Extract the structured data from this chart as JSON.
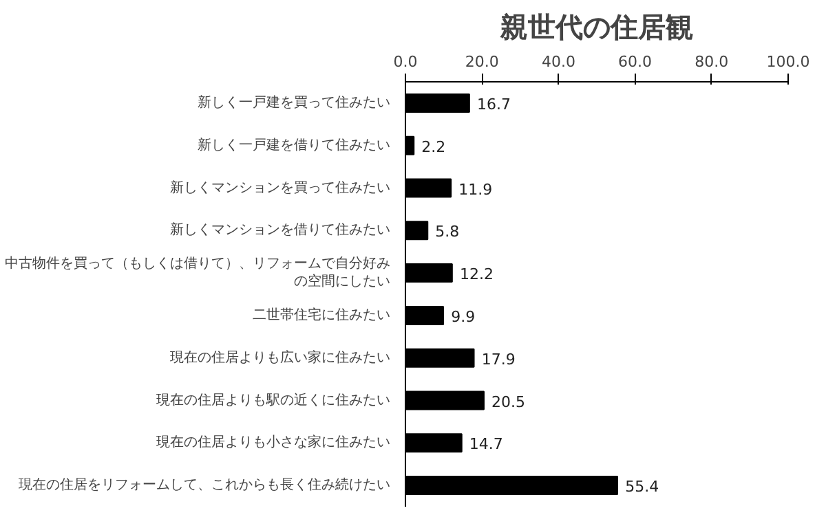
{
  "chart_data": {
    "type": "bar",
    "orientation": "horizontal",
    "title": "親世代の住居観",
    "categories": [
      "新しく一戸建を買って住みたい",
      "新しく一戸建を借りて住みたい",
      "新しくマンションを買って住みたい",
      "新しくマンションを借りて住みたい",
      "中古物件を買って（もしくは借りて）、リフォームで自分好みの空間にしたい",
      "二世帯住宅に住みたい",
      "現在の住居よりも広い家に住みたい",
      "現在の住居よりも駅の近くに住みたい",
      "現在の住居よりも小さな家に住みたい",
      "現在の住居をリフォームして、これからも長く住み続けたい"
    ],
    "values": [
      16.7,
      2.2,
      11.9,
      5.8,
      12.2,
      9.9,
      17.9,
      20.5,
      14.7,
      55.4
    ],
    "color": "#000000",
    "xlim": [
      0,
      100
    ],
    "xticks": [
      {
        "value": 0,
        "label": "0.0"
      },
      {
        "value": 20,
        "label": "20.0"
      },
      {
        "value": 40,
        "label": "40.0"
      },
      {
        "value": 60,
        "label": "60.0"
      },
      {
        "value": 80,
        "label": "80.0"
      },
      {
        "value": 100,
        "label": "100.0"
      }
    ],
    "data_labels": true
  }
}
